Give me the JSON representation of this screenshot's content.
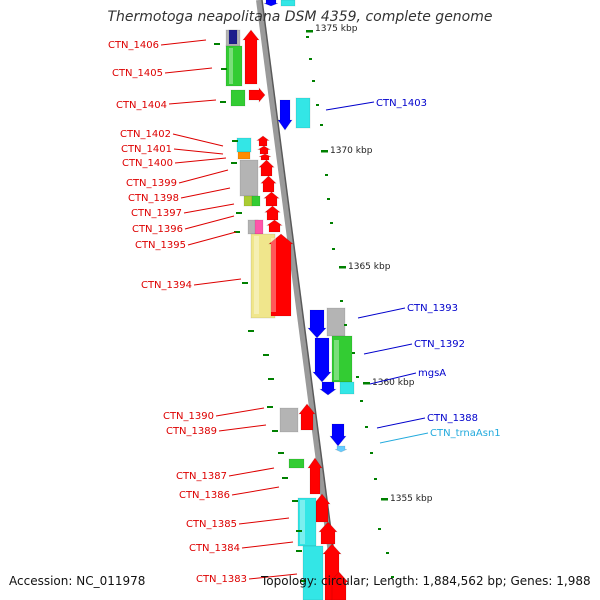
{
  "title": "Thermotoga neapolitana DSM 4359, complete genome",
  "footer": {
    "accession": "Accession: NC_011978",
    "summary": "Topology: circular; Length: 1,884,562 bp; Genes: 1,988"
  },
  "colors": {
    "backbone": "#8c8c8c",
    "red": "#ff0000",
    "blue": "#0000ff",
    "cyan": "#33e6e6",
    "green": "#33cc33",
    "gray": "#b4b4b4",
    "khaki": "#f0e68c",
    "navy": "#1e1e8c",
    "orange": "#ff8c00",
    "pink": "#ff55aa",
    "olive": "#aacc33",
    "tick": "#008000",
    "label_red": "#dd0000",
    "label_blue": "#0000cc",
    "label_cyan": "#22aadd"
  },
  "scale_ticks": [
    {
      "label": "1375 kbp",
      "partial": true
    },
    {
      "label": "1370 kbp"
    },
    {
      "label": "1365 kbp"
    },
    {
      "label": "1360 kbp"
    },
    {
      "label": "1355 kbp"
    }
  ],
  "genes_left": [
    {
      "name": "CTN_1406"
    },
    {
      "name": "CTN_1405"
    },
    {
      "name": "CTN_1404"
    },
    {
      "name": "CTN_1402"
    },
    {
      "name": "CTN_1401"
    },
    {
      "name": "CTN_1400"
    },
    {
      "name": "CTN_1399"
    },
    {
      "name": "CTN_1398"
    },
    {
      "name": "CTN_1397"
    },
    {
      "name": "CTN_1396"
    },
    {
      "name": "CTN_1395"
    },
    {
      "name": "CTN_1394"
    },
    {
      "name": "CTN_1390"
    },
    {
      "name": "CTN_1389"
    },
    {
      "name": "CTN_1387"
    },
    {
      "name": "CTN_1386"
    },
    {
      "name": "CTN_1385"
    },
    {
      "name": "CTN_1384"
    },
    {
      "name": "CTN_1383"
    }
  ],
  "genes_right": [
    {
      "name": "CTN_1403"
    },
    {
      "name": "CTN_1393"
    },
    {
      "name": "CTN_1392"
    },
    {
      "name": "mgsA"
    },
    {
      "name": "CTN_1388"
    },
    {
      "name": "CTN_trnaAsn1"
    }
  ]
}
